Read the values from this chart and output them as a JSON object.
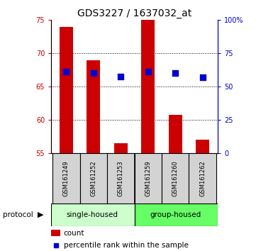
{
  "title": "GDS3227 / 1637032_at",
  "categories": [
    "GSM161249",
    "GSM161252",
    "GSM161253",
    "GSM161259",
    "GSM161260",
    "GSM161262"
  ],
  "bar_values": [
    74.0,
    69.0,
    56.5,
    75.0,
    60.7,
    57.0
  ],
  "bar_bottom": 55.0,
  "percentile_values": [
    67.2,
    67.0,
    66.5,
    67.3,
    67.0,
    66.4
  ],
  "ylim_left": [
    55,
    75
  ],
  "ylim_right": [
    0,
    100
  ],
  "yticks_left": [
    55,
    60,
    65,
    70,
    75
  ],
  "yticks_right": [
    0,
    25,
    50,
    75,
    100
  ],
  "ytick_labels_right": [
    "0",
    "25",
    "50",
    "75",
    "100%"
  ],
  "bar_color": "#cc0000",
  "dot_color": "#0000cc",
  "group1_label": "single-housed",
  "group2_label": "group-housed",
  "group1_color": "#ccffcc",
  "group2_color": "#66ff66",
  "protocol_label": "protocol",
  "legend_count": "count",
  "legend_percentile": "percentile rank within the sample",
  "bar_width": 0.5,
  "dot_size": 35,
  "tick_label_color_left": "#cc0000",
  "tick_label_color_right": "#0000cc",
  "gridlines": [
    65,
    70
  ],
  "dotted_lines": [
    60,
    65,
    70
  ]
}
